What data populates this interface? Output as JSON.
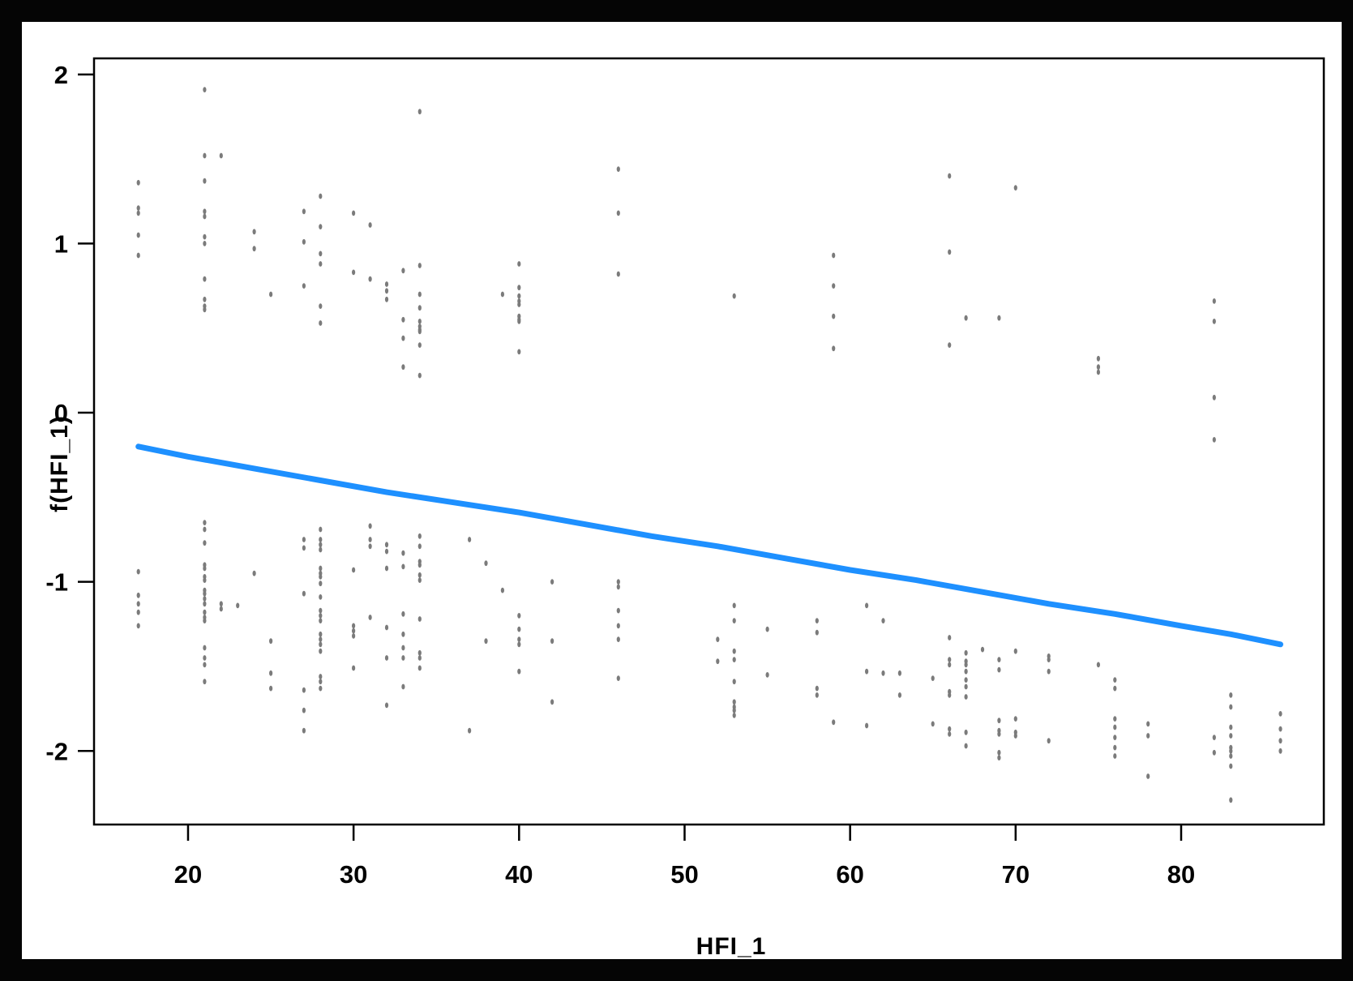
{
  "chart_data": {
    "type": "scatter",
    "title": "",
    "xlabel": "HFI_1",
    "ylabel": "f(HFI_1)",
    "x_ticks": [
      20,
      30,
      40,
      50,
      60,
      70,
      80
    ],
    "y_ticks": [
      2,
      1,
      0,
      -1,
      -2
    ],
    "xlim": [
      14.32,
      88.62
    ],
    "ylim": [
      -2.435,
      2.095
    ],
    "grid": false,
    "legend": "none",
    "colors": {
      "smooth_line": "#1E90FF",
      "points": "#7b7b7b",
      "axis": "#000000",
      "panel_background": "#ffffff",
      "page_background": "#050505"
    },
    "smooth_line": {
      "name": "gam-smooth",
      "points": [
        [
          17,
          -0.2
        ],
        [
          20,
          -0.26
        ],
        [
          24,
          -0.33
        ],
        [
          28,
          -0.4
        ],
        [
          32,
          -0.47
        ],
        [
          36,
          -0.53
        ],
        [
          40,
          -0.59
        ],
        [
          44,
          -0.66
        ],
        [
          48,
          -0.73
        ],
        [
          52,
          -0.79
        ],
        [
          56,
          -0.86
        ],
        [
          60,
          -0.93
        ],
        [
          64,
          -0.99
        ],
        [
          68,
          -1.06
        ],
        [
          72,
          -1.13
        ],
        [
          76,
          -1.19
        ],
        [
          80,
          -1.26
        ],
        [
          83,
          -1.31
        ],
        [
          86,
          -1.37
        ]
      ]
    },
    "points": [
      [
        17,
        1.36
      ],
      [
        17,
        1.21
      ],
      [
        17,
        1.18
      ],
      [
        17,
        1.05
      ],
      [
        17,
        0.93
      ],
      [
        17,
        -0.94
      ],
      [
        17,
        -1.08
      ],
      [
        17,
        -1.13
      ],
      [
        17,
        -1.18
      ],
      [
        17,
        -1.26
      ],
      [
        21,
        1.91
      ],
      [
        21,
        1.52
      ],
      [
        21,
        1.37
      ],
      [
        21,
        1.19
      ],
      [
        21,
        1.16
      ],
      [
        21,
        1.04
      ],
      [
        21,
        1.0
      ],
      [
        21,
        0.79
      ],
      [
        21,
        0.67
      ],
      [
        21,
        0.63
      ],
      [
        21,
        0.61
      ],
      [
        21,
        -0.65
      ],
      [
        21,
        -0.69
      ],
      [
        21,
        -0.77
      ],
      [
        21,
        -0.9
      ],
      [
        21,
        -0.92
      ],
      [
        21,
        -0.97
      ],
      [
        21,
        -0.99
      ],
      [
        21,
        -1.05
      ],
      [
        21,
        -1.07
      ],
      [
        21,
        -1.1
      ],
      [
        21,
        -1.13
      ],
      [
        21,
        -1.18
      ],
      [
        21,
        -1.21
      ],
      [
        21,
        -1.23
      ],
      [
        21,
        -1.39
      ],
      [
        21,
        -1.45
      ],
      [
        21,
        -1.49
      ],
      [
        21,
        -1.59
      ],
      [
        22,
        1.52
      ],
      [
        22,
        -1.13
      ],
      [
        22,
        -1.16
      ],
      [
        23,
        -1.14
      ],
      [
        24,
        1.07
      ],
      [
        24,
        0.97
      ],
      [
        24,
        -0.95
      ],
      [
        25,
        0.7
      ],
      [
        25,
        -1.35
      ],
      [
        25,
        -1.54
      ],
      [
        25,
        -1.63
      ],
      [
        27,
        1.19
      ],
      [
        27,
        1.01
      ],
      [
        27,
        0.75
      ],
      [
        27,
        -0.75
      ],
      [
        27,
        -0.8
      ],
      [
        27,
        -1.07
      ],
      [
        27,
        -1.64
      ],
      [
        27,
        -1.76
      ],
      [
        27,
        -1.88
      ],
      [
        28,
        1.28
      ],
      [
        28,
        1.1
      ],
      [
        28,
        0.94
      ],
      [
        28,
        0.88
      ],
      [
        28,
        0.63
      ],
      [
        28,
        0.53
      ],
      [
        28,
        -0.69
      ],
      [
        28,
        -0.75
      ],
      [
        28,
        -0.78
      ],
      [
        28,
        -0.81
      ],
      [
        28,
        -0.92
      ],
      [
        28,
        -0.95
      ],
      [
        28,
        -0.97
      ],
      [
        28,
        -1.01
      ],
      [
        28,
        -1.09
      ],
      [
        28,
        -1.17
      ],
      [
        28,
        -1.2
      ],
      [
        28,
        -1.23
      ],
      [
        28,
        -1.31
      ],
      [
        28,
        -1.34
      ],
      [
        28,
        -1.37
      ],
      [
        28,
        -1.41
      ],
      [
        28,
        -1.56
      ],
      [
        28,
        -1.59
      ],
      [
        28,
        -1.63
      ],
      [
        30,
        1.18
      ],
      [
        30,
        0.83
      ],
      [
        30,
        -0.93
      ],
      [
        30,
        -1.26
      ],
      [
        30,
        -1.29
      ],
      [
        30,
        -1.32
      ],
      [
        30,
        -1.51
      ],
      [
        31,
        1.11
      ],
      [
        31,
        0.79
      ],
      [
        31,
        -0.67
      ],
      [
        31,
        -0.75
      ],
      [
        31,
        -0.79
      ],
      [
        31,
        -1.21
      ],
      [
        32,
        0.76
      ],
      [
        32,
        0.72
      ],
      [
        32,
        0.67
      ],
      [
        32,
        -0.78
      ],
      [
        32,
        -0.82
      ],
      [
        32,
        -0.92
      ],
      [
        32,
        -1.27
      ],
      [
        32,
        -1.45
      ],
      [
        32,
        -1.73
      ],
      [
        33,
        0.84
      ],
      [
        33,
        0.55
      ],
      [
        33,
        0.44
      ],
      [
        33,
        0.27
      ],
      [
        33,
        -0.83
      ],
      [
        33,
        -0.91
      ],
      [
        33,
        -1.19
      ],
      [
        33,
        -1.31
      ],
      [
        33,
        -1.39
      ],
      [
        33,
        -1.45
      ],
      [
        33,
        -1.62
      ],
      [
        34,
        1.78
      ],
      [
        34,
        0.87
      ],
      [
        34,
        0.7
      ],
      [
        34,
        0.62
      ],
      [
        34,
        0.54
      ],
      [
        34,
        0.51
      ],
      [
        34,
        0.49
      ],
      [
        34,
        0.48
      ],
      [
        34,
        0.4
      ],
      [
        34,
        0.22
      ],
      [
        34,
        -0.73
      ],
      [
        34,
        -0.79
      ],
      [
        34,
        -0.88
      ],
      [
        34,
        -0.9
      ],
      [
        34,
        -0.96
      ],
      [
        34,
        -0.99
      ],
      [
        34,
        -1.22
      ],
      [
        34,
        -1.42
      ],
      [
        34,
        -1.45
      ],
      [
        34,
        -1.51
      ],
      [
        37,
        -0.75
      ],
      [
        37,
        -1.88
      ],
      [
        38,
        -0.89
      ],
      [
        38,
        -1.35
      ],
      [
        39,
        0.7
      ],
      [
        39,
        -1.05
      ],
      [
        40,
        0.88
      ],
      [
        40,
        0.74
      ],
      [
        40,
        0.69
      ],
      [
        40,
        0.66
      ],
      [
        40,
        0.64
      ],
      [
        40,
        0.57
      ],
      [
        40,
        0.55
      ],
      [
        40,
        0.54
      ],
      [
        40,
        0.36
      ],
      [
        40,
        -1.2
      ],
      [
        40,
        -1.28
      ],
      [
        40,
        -1.34
      ],
      [
        40,
        -1.37
      ],
      [
        40,
        -1.53
      ],
      [
        42,
        -1.0
      ],
      [
        42,
        -1.35
      ],
      [
        42,
        -1.71
      ],
      [
        46,
        1.44
      ],
      [
        46,
        1.18
      ],
      [
        46,
        0.82
      ],
      [
        46,
        -1.0
      ],
      [
        46,
        -1.03
      ],
      [
        46,
        -1.17
      ],
      [
        46,
        -1.26
      ],
      [
        46,
        -1.34
      ],
      [
        46,
        -1.57
      ],
      [
        52,
        -1.34
      ],
      [
        52,
        -1.47
      ],
      [
        53,
        0.69
      ],
      [
        53,
        -1.14
      ],
      [
        53,
        -1.23
      ],
      [
        53,
        -1.41
      ],
      [
        53,
        -1.46
      ],
      [
        53,
        -1.59
      ],
      [
        53,
        -1.71
      ],
      [
        53,
        -1.74
      ],
      [
        53,
        -1.76
      ],
      [
        53,
        -1.79
      ],
      [
        55,
        -1.28
      ],
      [
        55,
        -1.55
      ],
      [
        58,
        -1.23
      ],
      [
        58,
        -1.3
      ],
      [
        58,
        -1.63
      ],
      [
        58,
        -1.67
      ],
      [
        59,
        0.93
      ],
      [
        59,
        0.75
      ],
      [
        59,
        0.57
      ],
      [
        59,
        0.38
      ],
      [
        59,
        -1.83
      ],
      [
        61,
        -1.14
      ],
      [
        61,
        -1.53
      ],
      [
        61,
        -1.85
      ],
      [
        62,
        -1.23
      ],
      [
        62,
        -1.54
      ],
      [
        63,
        -1.54
      ],
      [
        63,
        -1.67
      ],
      [
        65,
        -1.57
      ],
      [
        65,
        -1.84
      ],
      [
        66,
        1.4
      ],
      [
        66,
        0.95
      ],
      [
        66,
        0.4
      ],
      [
        66,
        -1.33
      ],
      [
        66,
        -1.46
      ],
      [
        66,
        -1.49
      ],
      [
        66,
        -1.65
      ],
      [
        66,
        -1.67
      ],
      [
        66,
        -1.87
      ],
      [
        66,
        -1.9
      ],
      [
        67,
        0.56
      ],
      [
        67,
        -1.42
      ],
      [
        67,
        -1.47
      ],
      [
        67,
        -1.49
      ],
      [
        67,
        -1.53
      ],
      [
        67,
        -1.58
      ],
      [
        67,
        -1.62
      ],
      [
        67,
        -1.68
      ],
      [
        67,
        -1.89
      ],
      [
        67,
        -1.97
      ],
      [
        68,
        -1.4
      ],
      [
        69,
        0.56
      ],
      [
        69,
        -1.46
      ],
      [
        69,
        -1.52
      ],
      [
        69,
        -1.82
      ],
      [
        69,
        -1.88
      ],
      [
        69,
        -1.9
      ],
      [
        69,
        -2.01
      ],
      [
        69,
        -2.04
      ],
      [
        70,
        1.33
      ],
      [
        70,
        -1.41
      ],
      [
        70,
        -1.81
      ],
      [
        70,
        -1.89
      ],
      [
        70,
        -1.91
      ],
      [
        72,
        -1.44
      ],
      [
        72,
        -1.46
      ],
      [
        72,
        -1.53
      ],
      [
        72,
        -1.94
      ],
      [
        75,
        0.32
      ],
      [
        75,
        0.27
      ],
      [
        75,
        0.24
      ],
      [
        75,
        -1.49
      ],
      [
        76,
        -1.58
      ],
      [
        76,
        -1.63
      ],
      [
        76,
        -1.81
      ],
      [
        76,
        -1.86
      ],
      [
        76,
        -1.92
      ],
      [
        76,
        -1.98
      ],
      [
        76,
        -2.03
      ],
      [
        78,
        -1.84
      ],
      [
        78,
        -1.91
      ],
      [
        78,
        -2.15
      ],
      [
        82,
        0.66
      ],
      [
        82,
        0.54
      ],
      [
        82,
        0.09
      ],
      [
        82,
        -0.16
      ],
      [
        82,
        -1.92
      ],
      [
        82,
        -2.01
      ],
      [
        83,
        -1.67
      ],
      [
        83,
        -1.74
      ],
      [
        83,
        -1.86
      ],
      [
        83,
        -1.91
      ],
      [
        83,
        -1.98
      ],
      [
        83,
        -2.0
      ],
      [
        83,
        -2.03
      ],
      [
        83,
        -2.09
      ],
      [
        83,
        -2.29
      ],
      [
        86,
        -1.78
      ],
      [
        86,
        -1.87
      ],
      [
        86,
        -1.94
      ],
      [
        86,
        -2.0
      ]
    ]
  }
}
